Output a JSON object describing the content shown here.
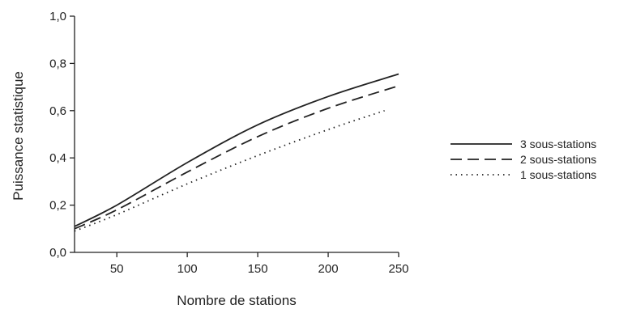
{
  "chart_data": {
    "type": "line",
    "xlabel": "Nombre de stations",
    "ylabel": "Puissance statistique",
    "xlim": [
      20,
      250
    ],
    "ylim": [
      0,
      1.0
    ],
    "xticks": [
      50,
      100,
      150,
      200,
      250
    ],
    "xtick_labels": [
      "50",
      "100",
      "150",
      "200",
      "250"
    ],
    "yticks": [
      0,
      0.2,
      0.4,
      0.6,
      0.8,
      1.0
    ],
    "ytick_labels": [
      "0,0",
      "0,2",
      "0,4",
      "0,6",
      "0,8",
      "1,0"
    ],
    "grid": false,
    "legend_position": "right",
    "series": [
      {
        "name": "3 sous-stations",
        "style": "solid",
        "x": [
          20,
          50,
          100,
          150,
          200,
          250
        ],
        "y": [
          0.11,
          0.2,
          0.38,
          0.54,
          0.66,
          0.755
        ]
      },
      {
        "name": "2 sous-stations",
        "style": "dashed",
        "x": [
          20,
          50,
          100,
          150,
          200,
          250
        ],
        "y": [
          0.1,
          0.18,
          0.34,
          0.49,
          0.61,
          0.705
        ]
      },
      {
        "name": "1 sous-stations",
        "style": "dotted",
        "x": [
          20,
          50,
          100,
          150,
          200,
          240
        ],
        "y": [
          0.09,
          0.16,
          0.29,
          0.41,
          0.52,
          0.6
        ]
      }
    ]
  }
}
